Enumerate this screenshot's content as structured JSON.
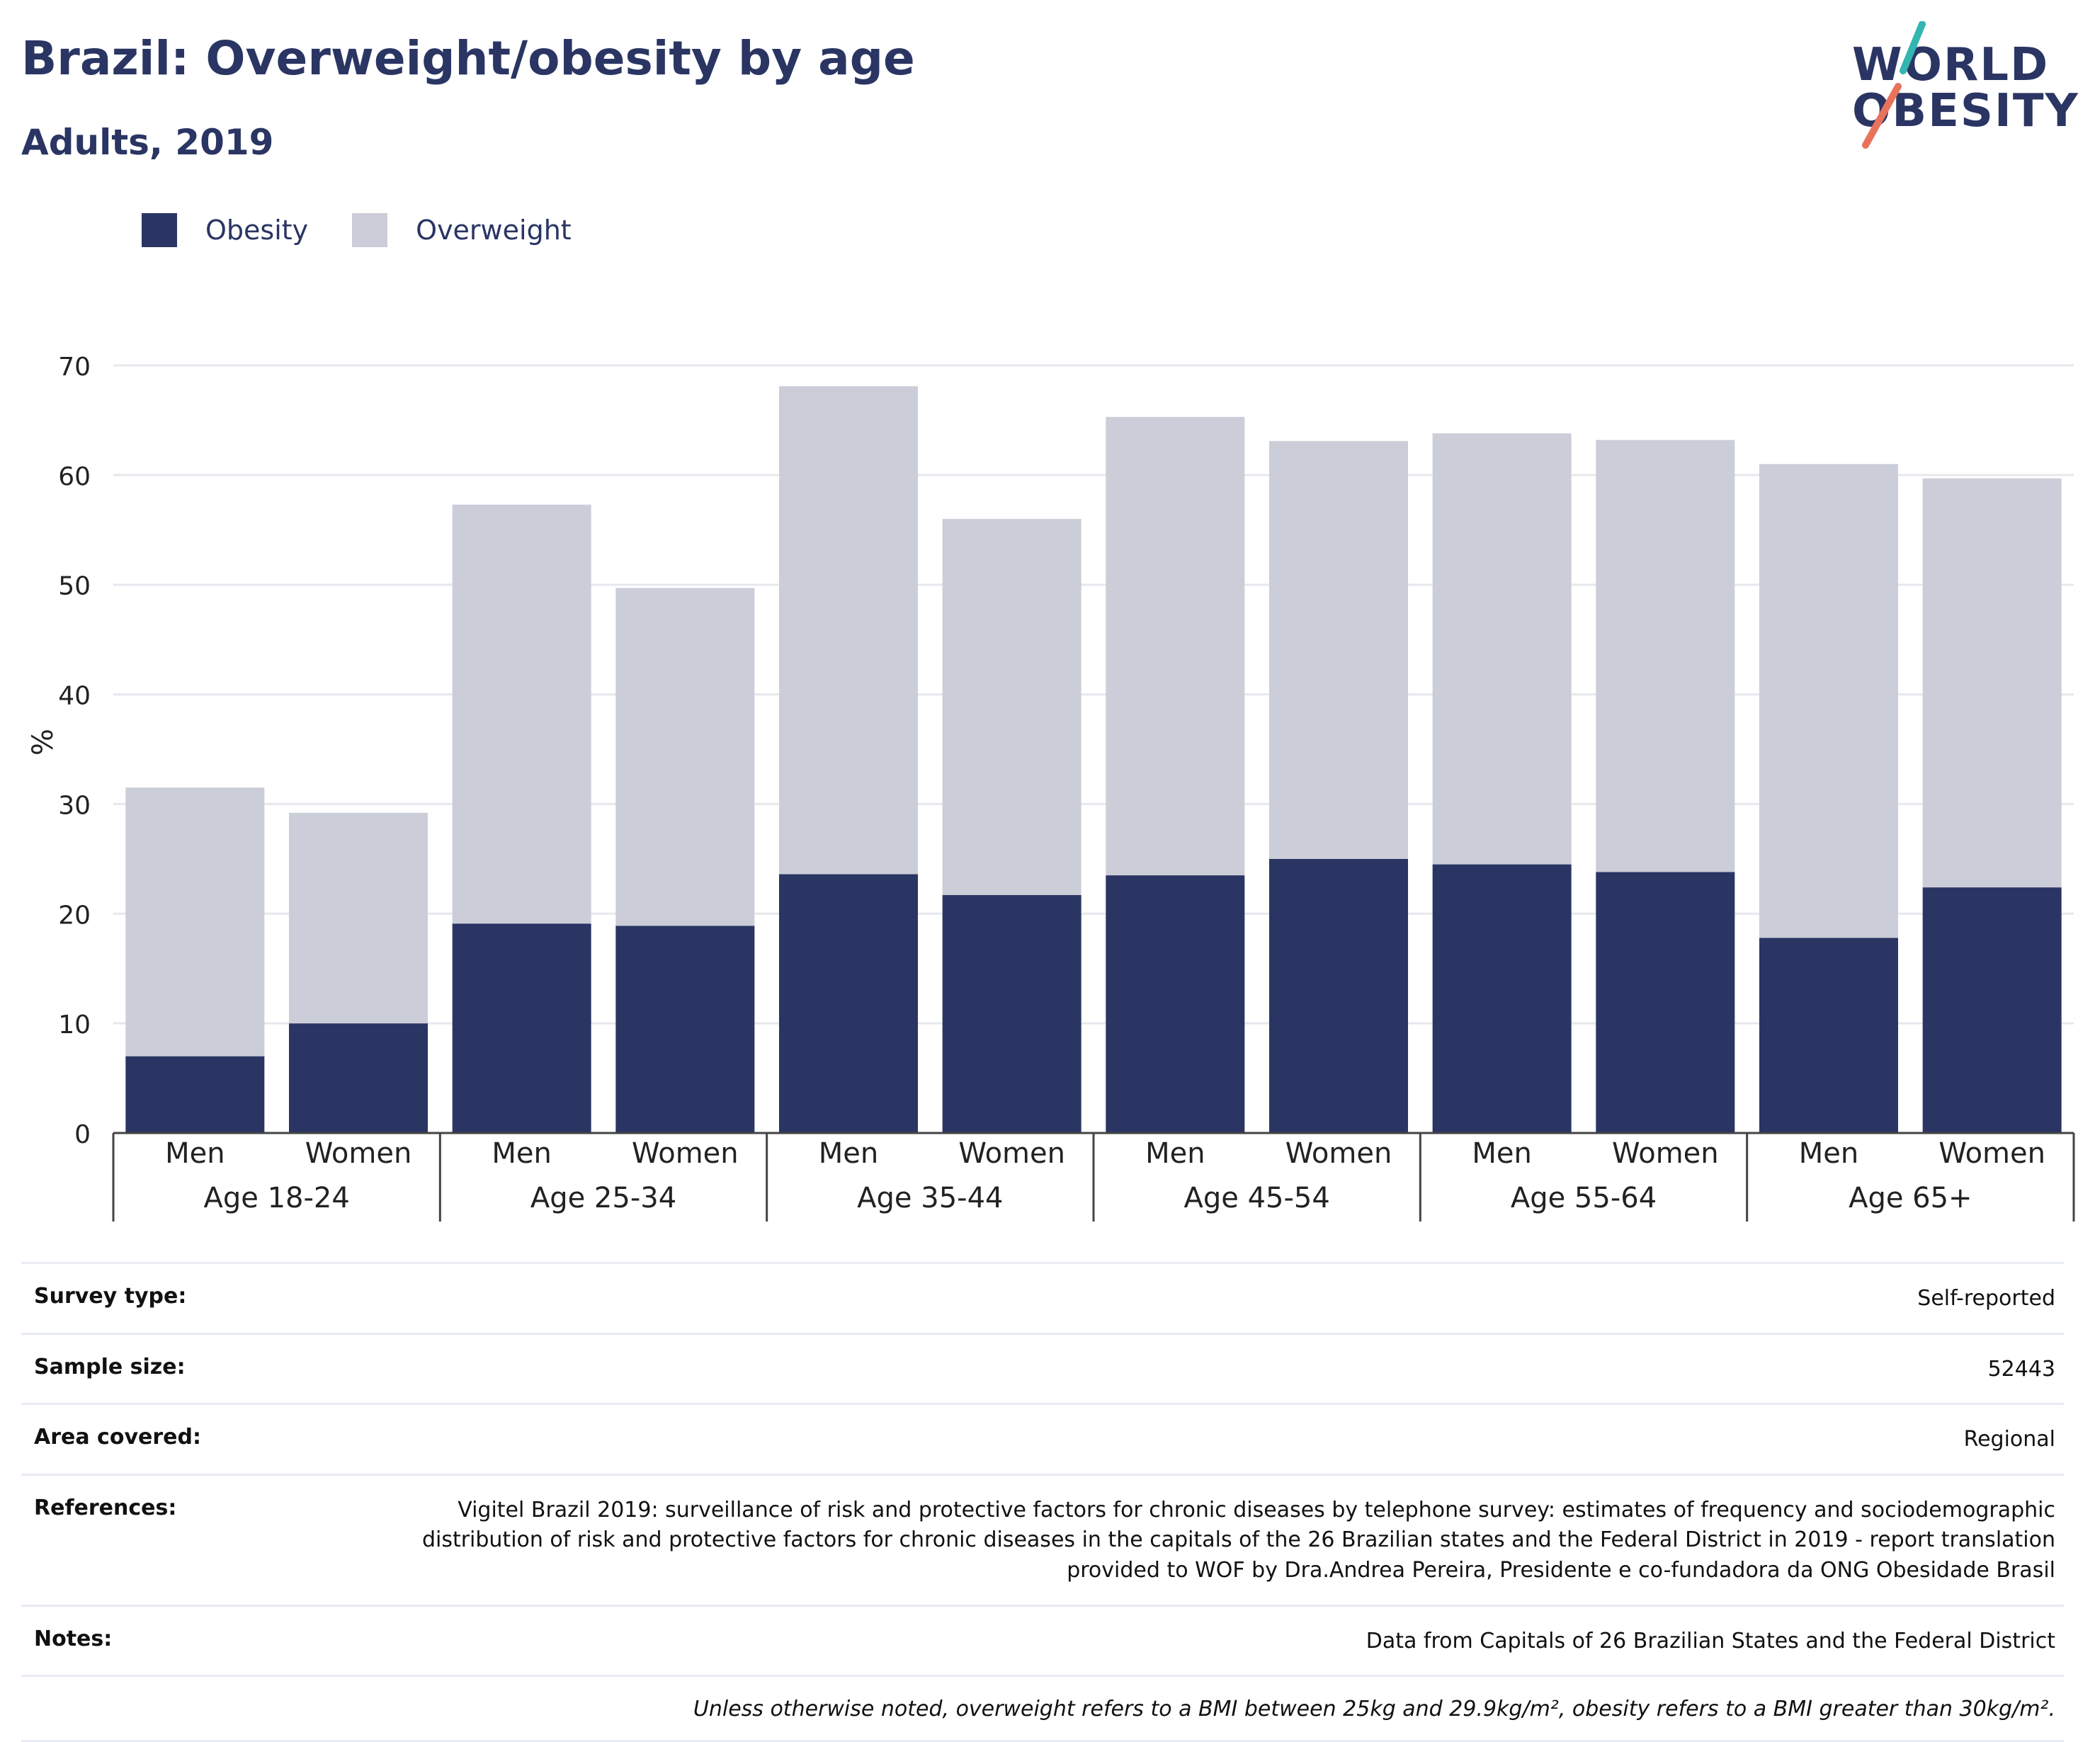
{
  "header": {
    "title": "Brazil: Overweight/obesity by age",
    "subtitle": "Adults, 2019"
  },
  "logo": {
    "line1": "WORLD",
    "line2": "OBESITY",
    "slash_colors": [
      "#33b5b0",
      "#e8735a"
    ]
  },
  "legend": {
    "items": [
      {
        "label": "Obesity",
        "color": "#2a3563"
      },
      {
        "label": "Overweight",
        "color": "#cbcdd8"
      }
    ]
  },
  "chart_data": {
    "type": "bar",
    "stacked": true,
    "title": "Brazil: Overweight/obesity by age",
    "subtitle": "Adults, 2019",
    "ylabel": "%",
    "xlabel": "",
    "ylim": [
      0,
      70
    ],
    "yticks": [
      0,
      10,
      20,
      30,
      40,
      50,
      60,
      70
    ],
    "grid": true,
    "legend_position": "top-left",
    "groups": [
      "Age 18-24",
      "Age 25-34",
      "Age 35-44",
      "Age 45-54",
      "Age 55-64",
      "Age 65+"
    ],
    "subcategories": [
      "Men",
      "Women"
    ],
    "categories": [
      "Men",
      "Women",
      "Men",
      "Women",
      "Men",
      "Women",
      "Men",
      "Women",
      "Men",
      "Women",
      "Men",
      "Women"
    ],
    "series": [
      {
        "name": "Obesity",
        "color": "#2a3563",
        "values": [
          7.0,
          10.0,
          19.1,
          18.9,
          23.6,
          21.7,
          23.5,
          25.0,
          24.5,
          23.8,
          17.8,
          22.4
        ]
      },
      {
        "name": "Overweight",
        "color": "#cbcdd8",
        "values": [
          24.5,
          19.2,
          38.2,
          30.8,
          44.5,
          34.3,
          41.8,
          38.1,
          39.3,
          39.4,
          43.2,
          37.3
        ]
      }
    ]
  },
  "info": {
    "rows": [
      {
        "key": "Survey type:",
        "value": "Self-reported"
      },
      {
        "key": "Sample size:",
        "value": "52443"
      },
      {
        "key": "Area covered:",
        "value": "Regional"
      },
      {
        "key": "References:",
        "value": "Vigitel Brazil 2019: surveillance of risk and protective factors for chronic diseases by telephone survey: estimates of frequency and sociodemographic distribution of risk and protective factors for chronic diseases in the capitals of the 26 Brazilian states and the Federal District in 2019 - report translation provided to WOF by Dra.Andrea Pereira, Presidente e co-fundadora da ONG Obesidade Brasil"
      },
      {
        "key": "Notes:",
        "value": "Data from Capitals of 26 Brazilian States and the Federal District"
      }
    ],
    "footnote": "Unless otherwise noted, overweight refers to a BMI between 25kg and 29.9kg/m², obesity refers to a BMI greater than 30kg/m²."
  }
}
